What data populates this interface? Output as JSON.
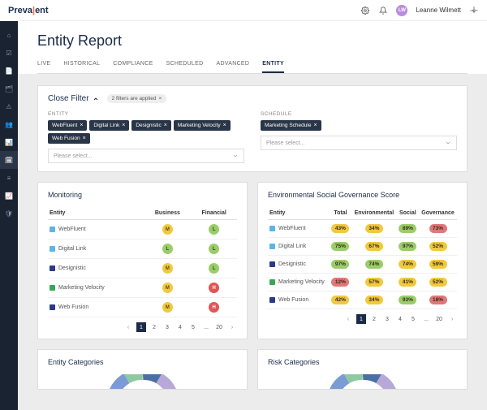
{
  "brand": {
    "pre": "Preva",
    "accent": "|",
    "post": "ent"
  },
  "user": {
    "initials": "LW",
    "name": "Leanne Wilmett"
  },
  "page_title": "Entity Report",
  "tabs": [
    "LIVE",
    "HISTORICAL",
    "COMPLIANCE",
    "SCHEDULED",
    "ADVANCED",
    "ENTITY"
  ],
  "active_tab": 5,
  "filter": {
    "title": "Close Filter",
    "count_label": "2 filters are applied",
    "entity_label": "ENTITY",
    "schedule_label": "SCHEDULE",
    "entity_chips": [
      "WebFluent",
      "Digital Link",
      "Designistic",
      "Marketing Velocity",
      "Web Fusion"
    ],
    "schedule_chips": [
      "Marketing Schedule"
    ],
    "placeholder": "Please select..."
  },
  "monitoring": {
    "title": "Monitoring",
    "cols": [
      "Entity",
      "Business",
      "Financial"
    ],
    "rows": [
      {
        "entity": "WebFluent",
        "color": "#5ab5e8",
        "business": "M",
        "financial": "L"
      },
      {
        "entity": "Digital Link",
        "color": "#5ab5e8",
        "business": "L",
        "financial": "L"
      },
      {
        "entity": "Designistic",
        "color": "#2a3a8a",
        "business": "M",
        "financial": "L"
      },
      {
        "entity": "Marketing Velocity",
        "color": "#3aa757",
        "business": "M",
        "financial": "H"
      },
      {
        "entity": "Web Fusion",
        "color": "#2a3a8a",
        "business": "M",
        "financial": "H"
      }
    ]
  },
  "esg": {
    "title": "Environmental Social Governance Score",
    "cols": [
      "Entity",
      "Total",
      "Environmental",
      "Social",
      "Governance"
    ],
    "rows": [
      {
        "entity": "WebFluent",
        "color": "#5ab5e8",
        "vals": [
          43,
          34,
          89,
          73
        ],
        "colors": [
          "#f0c93e",
          "#f0c93e",
          "#9acd6a",
          "#e07878"
        ]
      },
      {
        "entity": "Digital Link",
        "color": "#5ab5e8",
        "vals": [
          75,
          67,
          97,
          52
        ],
        "colors": [
          "#9acd6a",
          "#f0c93e",
          "#9acd6a",
          "#f0c93e"
        ]
      },
      {
        "entity": "Designistic",
        "color": "#2a3a8a",
        "vals": [
          97,
          74,
          74,
          59
        ],
        "colors": [
          "#9acd6a",
          "#9acd6a",
          "#f0c93e",
          "#f0c93e"
        ]
      },
      {
        "entity": "Marketing Velocity",
        "color": "#3aa757",
        "vals": [
          12,
          57,
          41,
          52
        ],
        "colors": [
          "#e07878",
          "#f0c93e",
          "#f0c93e",
          "#f0c93e"
        ]
      },
      {
        "entity": "Web Fusion",
        "color": "#2a3a8a",
        "vals": [
          42,
          34,
          93,
          18
        ],
        "colors": [
          "#f0c93e",
          "#f0c93e",
          "#9acd6a",
          "#e07878"
        ]
      }
    ]
  },
  "pager": {
    "pages": [
      "1",
      "2",
      "3",
      "4",
      "5",
      "...",
      "20"
    ],
    "active": 0
  },
  "bottom_panels": [
    "Entity Categories",
    "Risk Categories"
  ],
  "donut_colors": [
    "#7a9bd4",
    "#8fc9a0",
    "#4a6fa5",
    "#b8a8d8",
    "#6a5a9a"
  ]
}
